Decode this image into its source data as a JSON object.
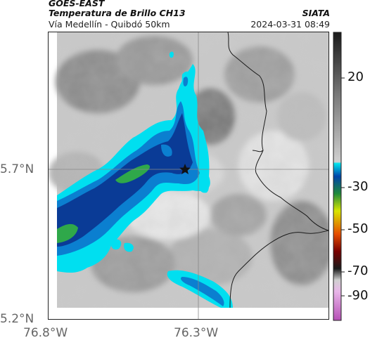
{
  "header": {
    "satellite": "GOES-EAST",
    "product": "Temperatura de Brillo CH13",
    "location": "Vía Medellín - Quibdó 50km",
    "brand": "SIATA",
    "timestamp": "2024-03-31 08:49"
  },
  "axes": {
    "lat_ticks": [
      "5.7°N",
      "5.2°N"
    ],
    "lon_ticks": [
      "76.8°W",
      "76.3°W"
    ]
  },
  "colorbar": {
    "labels": [
      "20",
      "-30",
      "-50",
      "-70",
      "-90"
    ],
    "colors": [
      "#1a1a1a",
      "#7a7a7a",
      "#d0d0d0",
      "#00e5ee",
      "#0044aa",
      "#2fb52f",
      "#d8e600",
      "#e64d00",
      "#4a0000",
      "#e8b6e8",
      "#b64fb6"
    ]
  },
  "map": {
    "marker_icon": "star-icon",
    "cloud_colors": {
      "light": "#00dff0",
      "mid": "#0b7fd0",
      "deep": "#0a3b96",
      "core": "#2fa84a"
    },
    "background_colors": {
      "dark": "#6f6f6f",
      "mid": "#a8a8a8",
      "light": "#dcdcdc"
    }
  }
}
